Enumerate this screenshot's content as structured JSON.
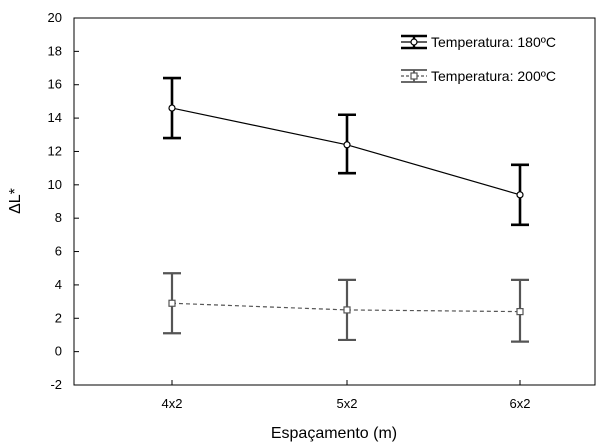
{
  "chart_data": {
    "type": "line",
    "title": "",
    "xlabel": "Espaçamento (m)",
    "ylabel": "ΔL*",
    "categories": [
      "4x2",
      "5x2",
      "6x2"
    ],
    "ylim": [
      -2,
      20
    ],
    "yticks": [
      -2,
      0,
      2,
      4,
      6,
      8,
      10,
      12,
      14,
      16,
      18,
      20
    ],
    "grid": false,
    "legend_position": "top-right",
    "series": [
      {
        "name": "Temperatura: 180ºC",
        "values": [
          14.6,
          12.4,
          9.4
        ],
        "error_lower": [
          12.8,
          10.7,
          7.6
        ],
        "error_upper": [
          16.4,
          14.2,
          11.2
        ],
        "line_style": "solid",
        "color": "#000000",
        "marker": "circle"
      },
      {
        "name": "Temperatura: 200ºC",
        "values": [
          2.9,
          2.5,
          2.4
        ],
        "error_lower": [
          1.1,
          0.7,
          0.6
        ],
        "error_upper": [
          4.7,
          4.3,
          4.3
        ],
        "line_style": "dashed",
        "color": "#555555",
        "marker": "square"
      }
    ]
  }
}
